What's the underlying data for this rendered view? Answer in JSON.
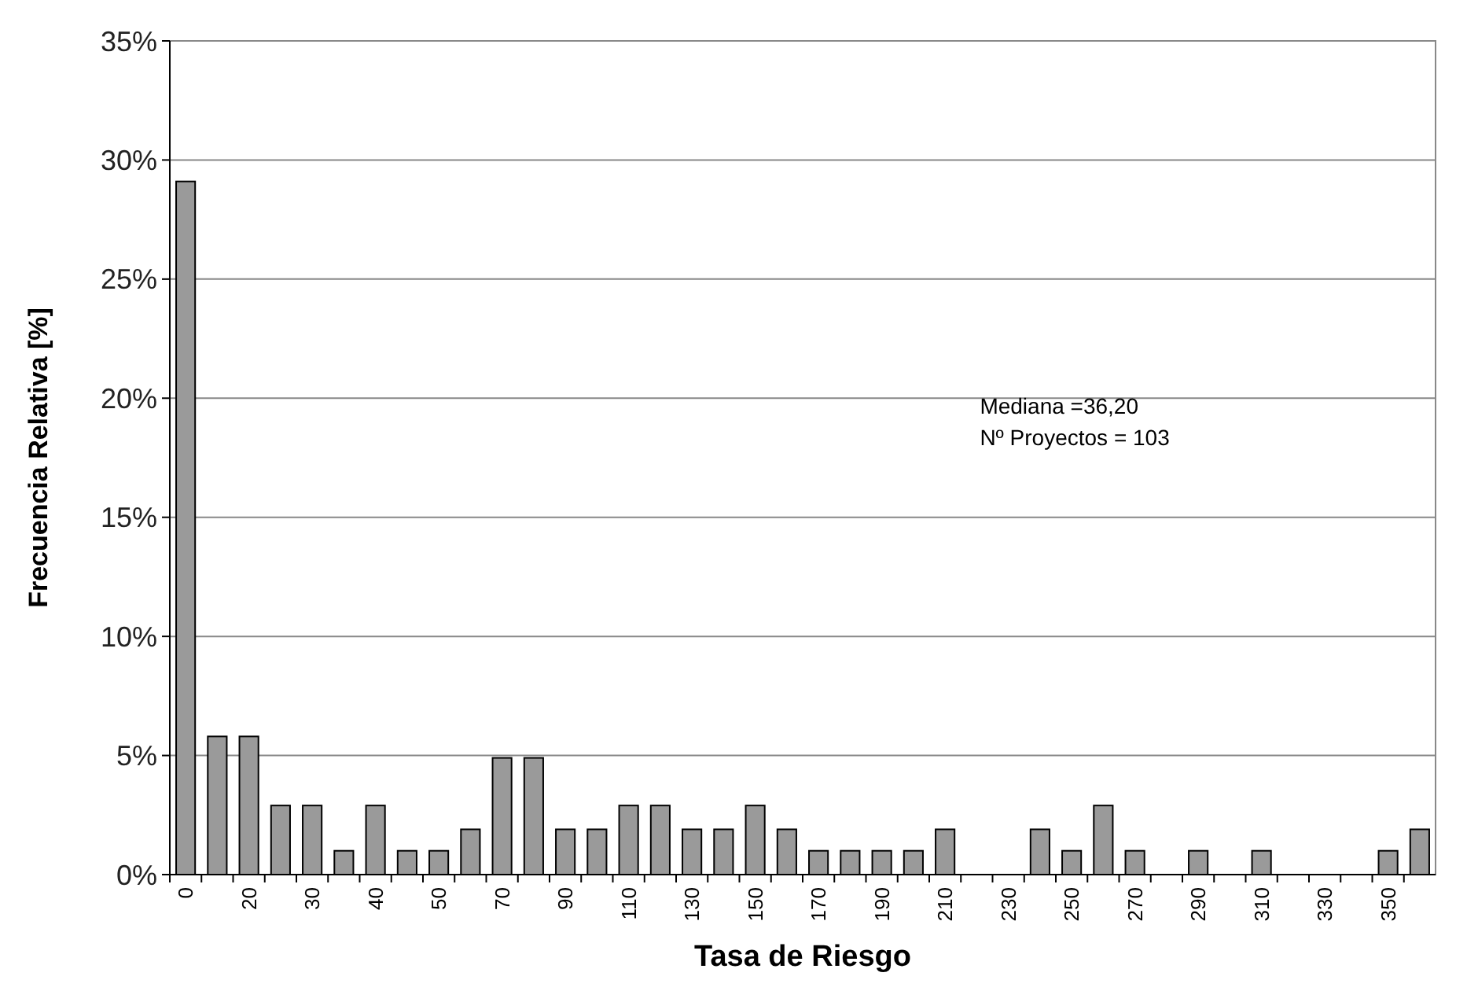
{
  "chart_data": {
    "type": "bar",
    "xlabel": "Tasa de Riesgo",
    "ylabel": "Frecuencia Relativa [%]",
    "categories": [
      "0",
      null,
      "20",
      null,
      "30",
      null,
      "40",
      null,
      "50",
      null,
      "70",
      null,
      "90",
      null,
      "110",
      null,
      "130",
      null,
      "150",
      null,
      "170",
      null,
      "190",
      null,
      "210",
      null,
      "230",
      null,
      "250",
      null,
      "270",
      null,
      "290",
      null,
      "310",
      null,
      "330",
      null,
      "350",
      null
    ],
    "values": [
      29.1,
      5.8,
      5.8,
      2.9,
      2.9,
      1,
      2.9,
      1,
      1,
      1.9,
      4.9,
      4.9,
      1.9,
      1.9,
      2.9,
      2.9,
      1.9,
      1.9,
      2.9,
      1.9,
      1,
      1,
      1,
      1,
      1.9,
      0,
      0,
      1.9,
      1,
      2.9,
      1,
      0,
      1,
      0,
      1,
      0,
      0,
      0,
      1,
      1.9
    ],
    "color": "#9a9a9a",
    "ylim": [
      0,
      35
    ],
    "yticks": [
      {
        "value": 0,
        "label": "0%"
      },
      {
        "value": 5,
        "label": "5%"
      },
      {
        "value": 10,
        "label": "10%"
      },
      {
        "value": 15,
        "label": "15%"
      },
      {
        "value": 20,
        "label": "20%"
      },
      {
        "value": 25,
        "label": "25%"
      },
      {
        "value": 30,
        "label": "30%"
      },
      {
        "value": 35,
        "label": "35%"
      }
    ],
    "grid": "y",
    "annotations": [
      "Mediana =36,20",
      "Nº Proyectos = 103"
    ]
  }
}
